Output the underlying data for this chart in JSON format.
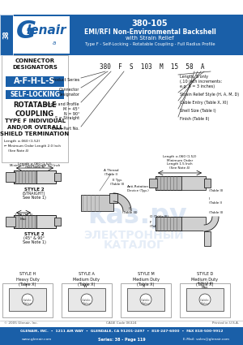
{
  "title_line1": "380-105",
  "title_line2": "EMI/RFI Non-Environmental Backshell",
  "title_line3": "with Strain Relief",
  "title_line4": "Type F - Self-Locking - Rotatable Coupling - Full Radius Profile",
  "header_text_color": "#ffffff",
  "logo_text": "Glenair",
  "series_tab": "38",
  "part_number": "380  F  S  103  M  15  58  A",
  "footer_text1": "GLENAIR, INC.  •  1211 AIR WAY  •  GLENDALE, CA 91201-2497  •  818-247-6000  •  FAX 818-500-9912",
  "footer_text2": "www.glenair.com",
  "footer_text3": "Series: 38 - Page 119",
  "footer_text4": "E-Mail: sales@glenair.com",
  "bg_color": "#ffffff",
  "blue_color": "#1a5fa8",
  "dark_text": "#111111",
  "copy_text": "© 2005 Glenair, Inc.",
  "cage_text": "CAGE Code 06324",
  "printed_text": "Printed in U.S.A."
}
